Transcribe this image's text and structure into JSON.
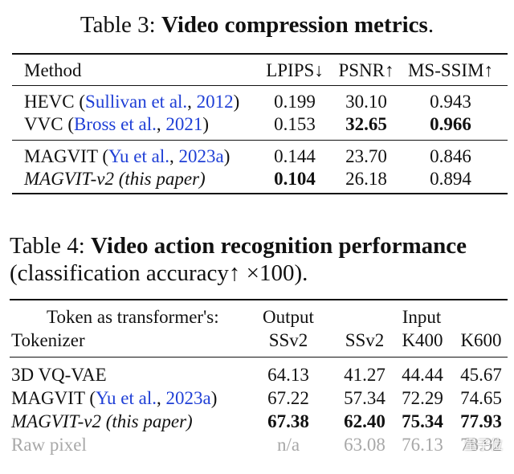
{
  "table3": {
    "caption_prefix": "Table 3:",
    "caption_title": "Video compression metrics",
    "caption_end": ".",
    "headers": [
      "Method",
      "LPIPS↓",
      "PSNR↑",
      "MS-SSIM↑"
    ],
    "rows": [
      {
        "method": "HEVC",
        "cite_open": "(",
        "cite_authors": "Sullivan et al.",
        "cite_sep": ",",
        "cite_year": "2012",
        "cite_close": ")",
        "lpips": "0.199",
        "psnr": "30.10",
        "msssim": "0.943"
      },
      {
        "method": "VVC",
        "cite_open": "(",
        "cite_authors": "Bross et al.",
        "cite_sep": ",",
        "cite_year": "2021",
        "cite_close": ")",
        "lpips": "0.153",
        "psnr": "32.65",
        "msssim": "0.966"
      },
      {
        "method": "MAGVIT",
        "cite_open": "(",
        "cite_authors": "Yu et al.",
        "cite_sep": ",",
        "cite_year": "2023a",
        "cite_close": ")",
        "lpips": "0.144",
        "psnr": "23.70",
        "msssim": "0.846"
      },
      {
        "method": "MAGVIT-v2 (this paper)",
        "lpips": "0.104",
        "psnr": "26.18",
        "msssim": "0.894"
      }
    ]
  },
  "table4": {
    "caption_prefix": "Table 4:",
    "caption_title": "Video action recognition performance",
    "caption_line2": "(classification accuracy↑ ×100).",
    "header_row1": {
      "token_as": "Token as transformer's:",
      "output": "Output",
      "input": "Input"
    },
    "header_row2": {
      "tokenizer": "Tokenizer",
      "out_ssv2": "SSv2",
      "in_ssv2": "SSv2",
      "k400": "K400",
      "k600": "K600"
    },
    "rows": [
      {
        "tokenizer": "3D VQ-VAE",
        "out_ssv2": "64.13",
        "in_ssv2": "41.27",
        "k400": "44.44",
        "k600": "45.67"
      },
      {
        "tokenizer": "MAGVIT",
        "cite_open": "(",
        "cite_authors": "Yu et al.",
        "cite_sep": ",",
        "cite_year": "2023a",
        "cite_close": ")",
        "out_ssv2": "67.22",
        "in_ssv2": "57.34",
        "k400": "72.29",
        "k600": "74.65"
      },
      {
        "tokenizer": "MAGVIT-v2 (this paper)",
        "out_ssv2": "67.38",
        "in_ssv2": "62.40",
        "k400": "75.34",
        "k600": "77.93"
      },
      {
        "tokenizer": "Raw pixel",
        "out_ssv2": "n/a",
        "in_ssv2": "63.08",
        "k400": "76.13",
        "k600": "78.92"
      }
    ]
  },
  "watermark": {
    "text": "量子位",
    "icon": "wechat-icon"
  },
  "colors": {
    "citation": "#1f3fd6",
    "text": "#111111",
    "muted": "#a8a8a8"
  }
}
